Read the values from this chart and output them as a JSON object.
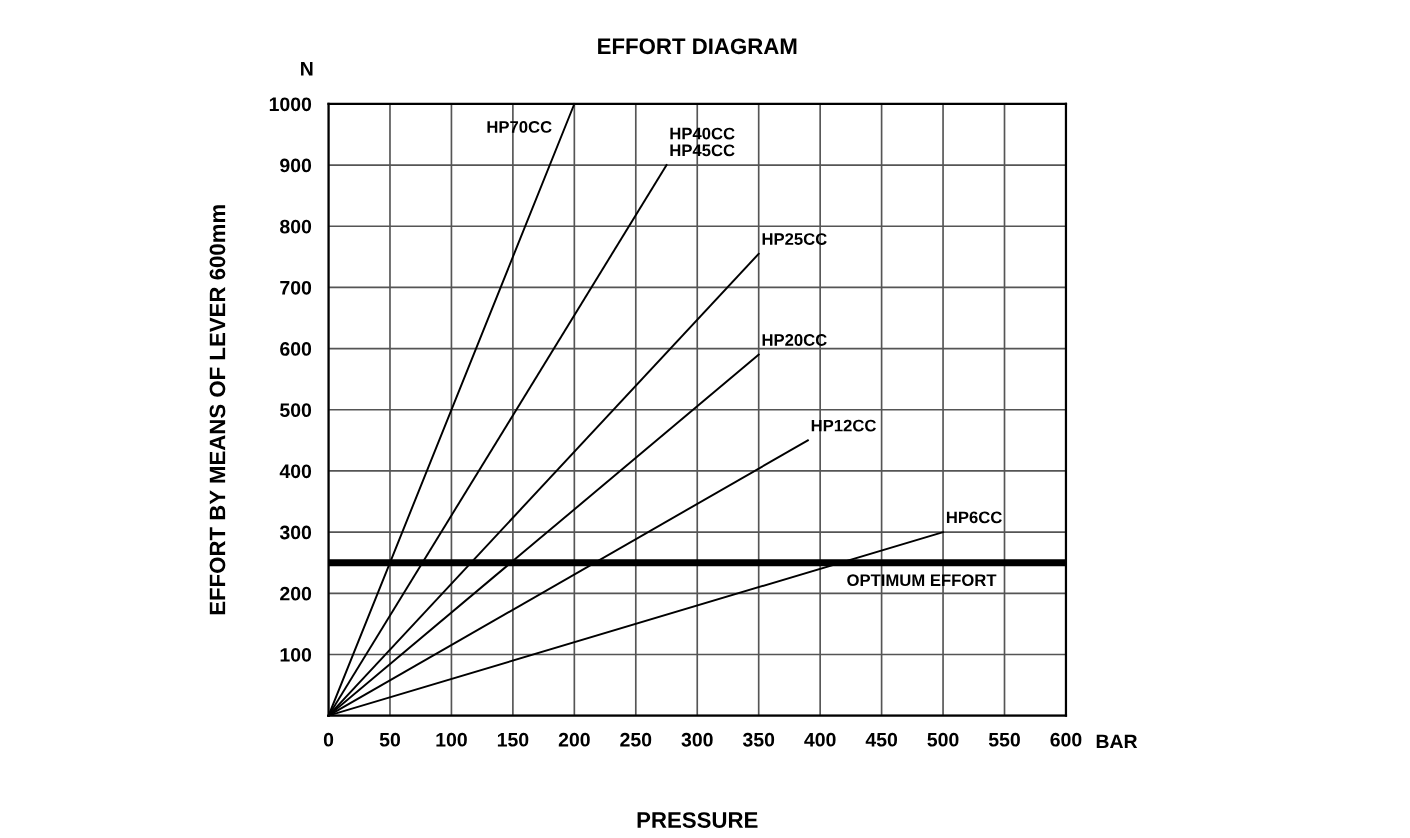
{
  "chart_data": {
    "type": "line",
    "title": "EFFORT DIAGRAM",
    "xlabel": "PRESSURE",
    "ylabel": "EFFORT BY MEANS OF LEVER 600mm",
    "annotations": [
      "N",
      "BAR"
    ],
    "series": [
      {
        "name": "HP70CC",
        "color": "#000000",
        "x": [
          0,
          200
        ],
        "values": [
          0,
          1000
        ]
      },
      {
        "name": "HP40CC\nHP45CC",
        "color": "#000000",
        "x": [
          0,
          275
        ],
        "values": [
          0,
          900
        ]
      },
      {
        "name": "HP25CC",
        "color": "#000000",
        "x": [
          0,
          350
        ],
        "values": [
          0,
          755
        ]
      },
      {
        "name": "HP20CC",
        "color": "#000000",
        "x": [
          0,
          350
        ],
        "values": [
          0,
          590
        ]
      },
      {
        "name": "HP12CC",
        "color": "#000000",
        "x": [
          0,
          390
        ],
        "values": [
          0,
          450
        ]
      },
      {
        "name": "HP6CC",
        "color": "#000000",
        "x": [
          0,
          500
        ],
        "values": [
          0,
          300
        ]
      }
    ],
    "ref_lines": [
      {
        "axis": "y",
        "value": 250,
        "label": "OPTIMUM EFFORT",
        "color": "#000000",
        "line_style": "solid"
      }
    ],
    "xlim": [
      0,
      600
    ],
    "ylim": [
      0,
      1000
    ],
    "xticks": [
      0,
      50,
      100,
      150,
      200,
      250,
      300,
      350,
      400,
      450,
      500,
      550,
      600
    ],
    "yticks": [
      {
        "value": 0,
        "label": null
      },
      100,
      200,
      300,
      400,
      500,
      600,
      700,
      800,
      900,
      1000
    ],
    "grid": true,
    "legend": false,
    "marker": "none",
    "line_style": "solid"
  }
}
